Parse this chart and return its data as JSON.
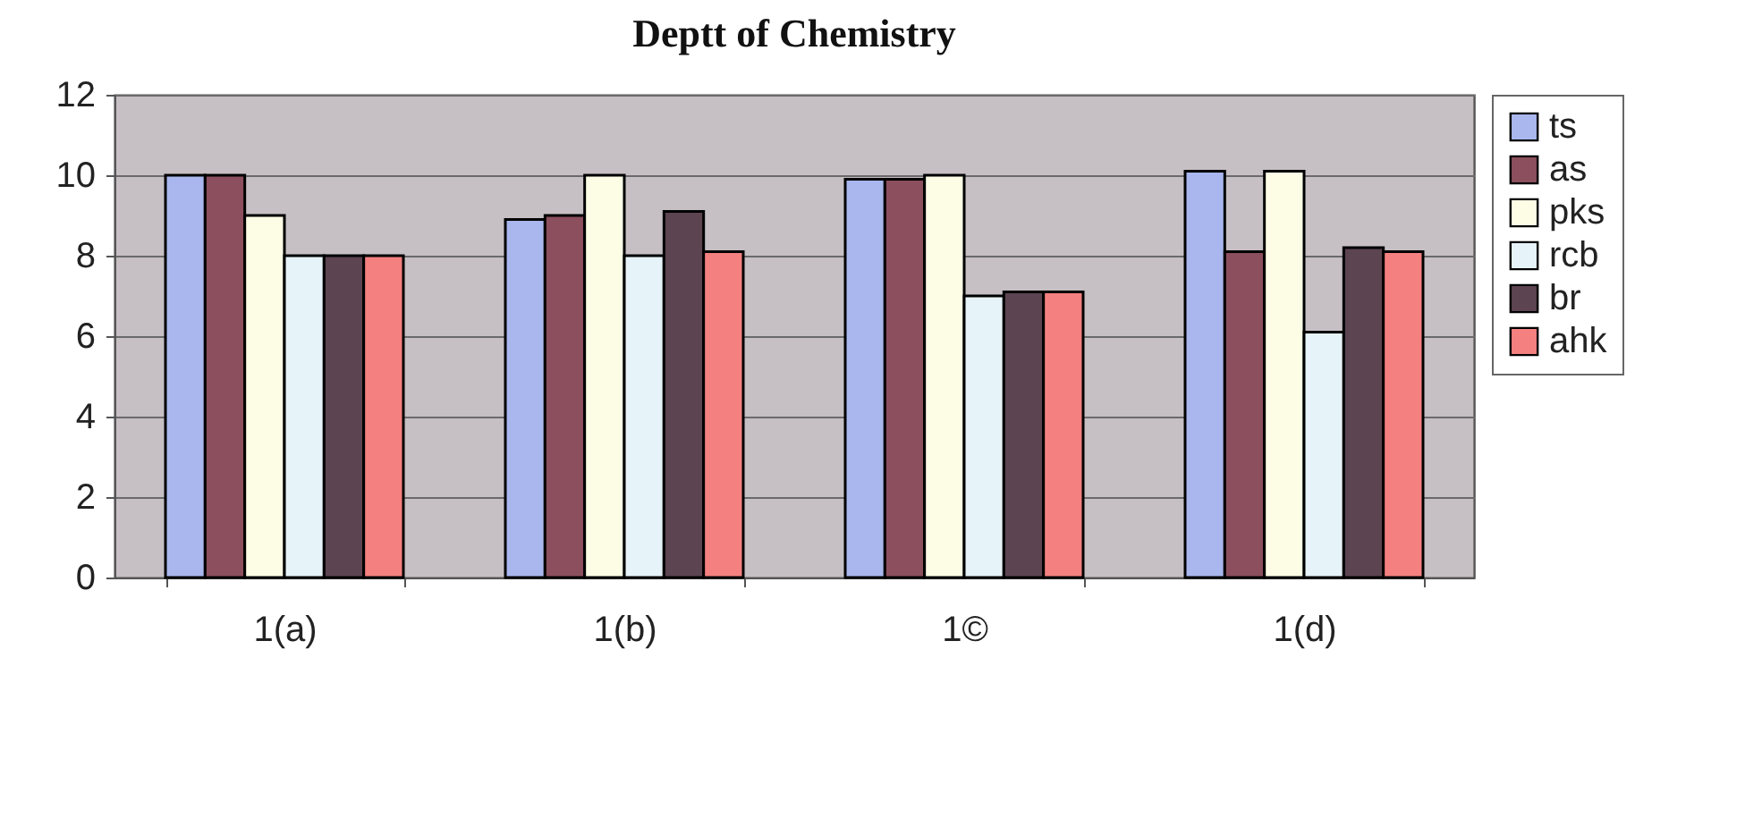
{
  "chart_data": {
    "type": "bar",
    "title": "Deptt of Chemistry",
    "categories": [
      "1(a)",
      "1(b)",
      "1©",
      "1(d)"
    ],
    "series": [
      {
        "name": "ts",
        "color": "#a9b7ee",
        "values": [
          10.0,
          8.9,
          9.9,
          10.1
        ]
      },
      {
        "name": "as",
        "color": "#8b4f5e",
        "values": [
          10.0,
          9.0,
          9.9,
          8.1
        ]
      },
      {
        "name": "pks",
        "color": "#fdfde6",
        "values": [
          9.0,
          10.0,
          10.0,
          10.1
        ]
      },
      {
        "name": "rcb",
        "color": "#e6f3f8",
        "values": [
          8.0,
          8.0,
          7.0,
          6.1
        ]
      },
      {
        "name": "br",
        "color": "#5c4450",
        "values": [
          8.0,
          9.1,
          7.1,
          8.2
        ]
      },
      {
        "name": "ahk",
        "color": "#f58080",
        "values": [
          8.0,
          8.1,
          7.1,
          8.1
        ]
      }
    ],
    "ylim": [
      0,
      12
    ],
    "yticks": [
      0,
      2,
      4,
      6,
      8,
      10,
      12
    ],
    "grid": "y",
    "legend": "right"
  }
}
